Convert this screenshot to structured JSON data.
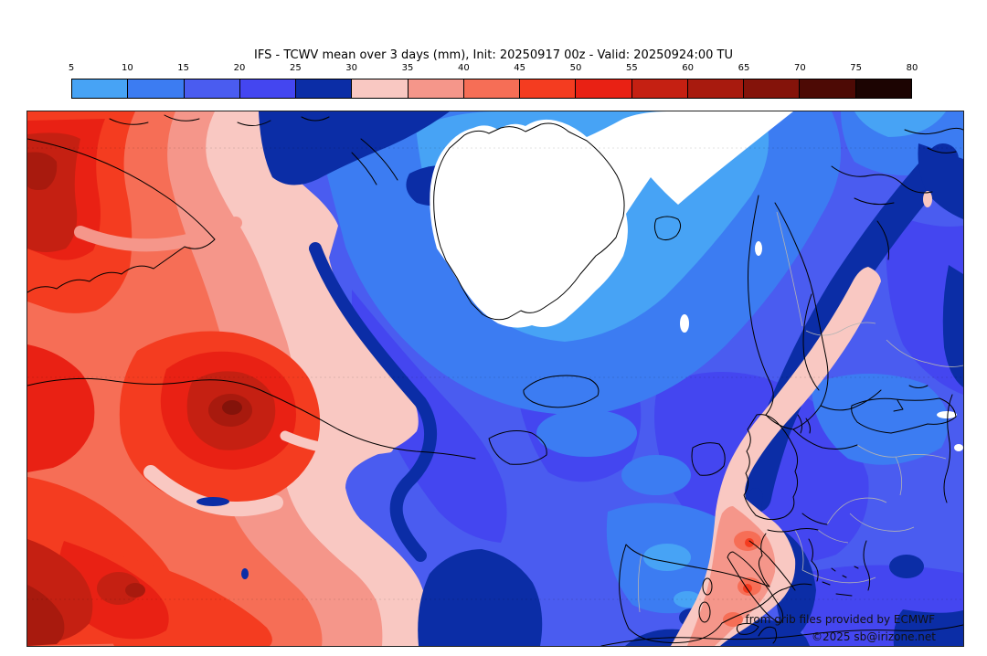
{
  "title": "IFS - TCWV mean over 3 days (mm), Init: 20250917 00z - Valid: 20250924:00 TU",
  "colorbar": {
    "ticks": [
      "5",
      "10",
      "15",
      "20",
      "25",
      "30",
      "35",
      "40",
      "45",
      "50",
      "55",
      "60",
      "65",
      "70",
      "75",
      "80"
    ],
    "segments": [
      {
        "range": "5-10",
        "color": "#47a3f5"
      },
      {
        "range": "10-15",
        "color": "#3c7cf2"
      },
      {
        "range": "15-20",
        "color": "#4a5cf0"
      },
      {
        "range": "20-25",
        "color": "#4446f0"
      },
      {
        "range": "25-30",
        "color": "#0b2da6"
      },
      {
        "range": "30-35",
        "color": "#f9c8c2"
      },
      {
        "range": "35-40",
        "color": "#f5968a"
      },
      {
        "range": "40-45",
        "color": "#f66e56"
      },
      {
        "range": "45-50",
        "color": "#f43c20"
      },
      {
        "range": "50-55",
        "color": "#e92114"
      },
      {
        "range": "55-60",
        "color": "#c52012"
      },
      {
        "range": "60-65",
        "color": "#a81a0e"
      },
      {
        "range": "65-70",
        "color": "#84130a"
      },
      {
        "range": "70-75",
        "color": "#4d0a05"
      },
      {
        "range": "75-80",
        "color": "#1c0402"
      }
    ]
  },
  "map": {
    "attribution_line1": "from grib files provided by ECMWF",
    "attribution_line2": "©2025 sb@irizone.net",
    "coastline_color": "#000000",
    "country_border_color": "#b3b3b3",
    "no_data_color": "#ffffff"
  },
  "chart_data": {
    "type": "heatmap",
    "title": "IFS - TCWV mean over 3 days (mm), Init: 20250917 00z - Valid: 20250924:00 TU",
    "variable": "Total Column Water Vapour, 3-day mean",
    "unit": "mm",
    "model": "IFS",
    "init": "20250917 00z",
    "valid": "20250924:00 TU",
    "region": "North Atlantic / Greenland / Europe",
    "scale_values": [
      5,
      10,
      15,
      20,
      25,
      30,
      35,
      40,
      45,
      50,
      55,
      60,
      65,
      70,
      75,
      80
    ],
    "scale_colors": [
      "#47a3f5",
      "#3c7cf2",
      "#4a5cf0",
      "#4446f0",
      "#0b2da6",
      "#f9c8c2",
      "#f5968a",
      "#f66e56",
      "#f43c20",
      "#e92114",
      "#c52012",
      "#a81a0e",
      "#84130a",
      "#4d0a05",
      "#1c0402"
    ],
    "legend_position": "top",
    "features": [
      {
        "name": "subtropical-west-atlantic-moist-mass",
        "approx_value_mm": "40-65"
      },
      {
        "name": "cyclone-core-west-atlantic",
        "approx_value_mm": "65-70"
      },
      {
        "name": "greenland-ice-sheet-and-arctic",
        "approx_value_mm": "<5"
      },
      {
        "name": "north-atlantic-polar-air",
        "approx_value_mm": "5-20"
      },
      {
        "name": "frontal-navy-bands",
        "approx_value_mm": "25-30"
      },
      {
        "name": "moist-plume-italy-to-nw-russia",
        "approx_value_mm": "30-50"
      },
      {
        "name": "europe-background",
        "approx_value_mm": "15-25"
      }
    ]
  }
}
